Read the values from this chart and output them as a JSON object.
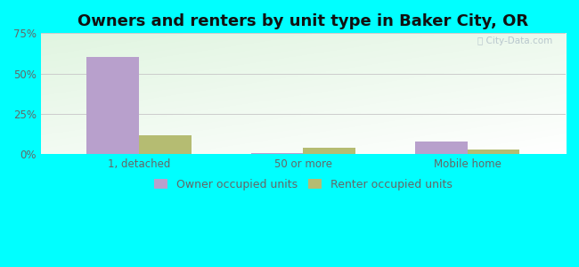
{
  "title": "Owners and renters by unit type in Baker City, OR",
  "categories": [
    "1, detached",
    "50 or more",
    "Mobile home"
  ],
  "owner_values": [
    60.5,
    1.0,
    8.0
  ],
  "renter_values": [
    12.0,
    4.0,
    3.0
  ],
  "owner_color": "#b8a0cc",
  "renter_color": "#b5bc72",
  "ylim_max": 75,
  "yticks": [
    0,
    25,
    50,
    75
  ],
  "ytick_labels": [
    "0%",
    "25%",
    "50%",
    "75%"
  ],
  "owner_label": "Owner occupied units",
  "renter_label": "Renter occupied units",
  "bar_width": 0.32,
  "figure_bg": "#00ffff",
  "title_fontsize": 13,
  "tick_fontsize": 8.5,
  "legend_fontsize": 9,
  "watermark_text": "City-Data.com",
  "watermark_color": "#b0bfc8",
  "grid_color": "#cccccc",
  "label_color": "#666666"
}
